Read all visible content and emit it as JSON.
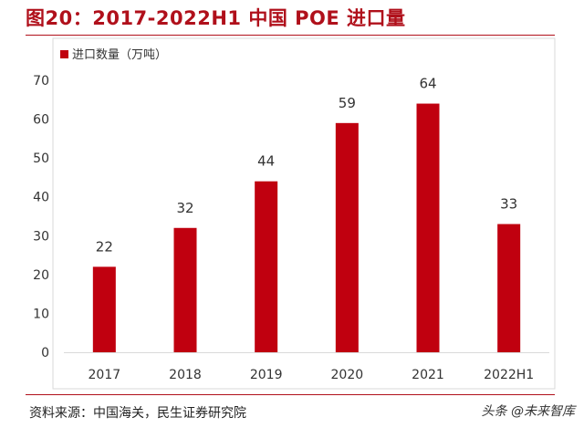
{
  "title": "图20：2017-2022H1 中国 POE 进口量",
  "source": "资料来源：中国海关，民生证券研究院",
  "watermark": "头条 @未来智库",
  "colors": {
    "bar": "#c0000f",
    "frame": "#d9d9d9",
    "title": "#b0101b"
  },
  "chart_data": {
    "type": "bar",
    "title": "",
    "xlabel": "",
    "ylabel": "",
    "categories": [
      "2017",
      "2018",
      "2019",
      "2020",
      "2021",
      "2022H1"
    ],
    "series": [
      {
        "name": "进口数量（万吨）",
        "values": [
          22,
          32,
          44,
          59,
          64,
          33
        ]
      }
    ],
    "data_labels": [
      "22",
      "32",
      "44",
      "59",
      "64",
      "33"
    ],
    "ylim": [
      0,
      70
    ],
    "yticks": [
      0,
      10,
      20,
      30,
      40,
      50,
      60,
      70
    ],
    "ytick_labels": [
      "0",
      "10",
      "20",
      "30",
      "40",
      "50",
      "60",
      "70"
    ],
    "grid": false,
    "legend_position": "top-left"
  }
}
